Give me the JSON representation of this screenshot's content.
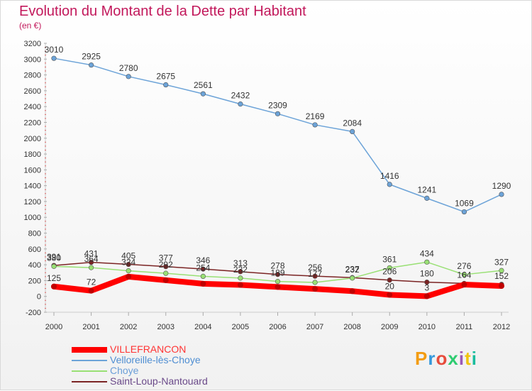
{
  "title": "Evolution du Montant de la Dette par Habitant",
  "subtitle": "(en €)",
  "brand": "Proxiti",
  "chart_data": {
    "type": "line",
    "title": "Evolution du Montant de la Dette par Habitant",
    "subtitle": "(en €)",
    "x": [
      "2000",
      "2001",
      "2002",
      "2003",
      "2004",
      "2005",
      "2006",
      "2007",
      "2008",
      "2009",
      "2010",
      "2011",
      "2012"
    ],
    "ylim": [
      -200,
      3200
    ],
    "yticks": [
      -200,
      0,
      200,
      400,
      600,
      800,
      1000,
      1200,
      1400,
      1600,
      1800,
      2000,
      2200,
      2400,
      2600,
      2800,
      3000,
      3200
    ],
    "grid": false,
    "legend_position": "bottom-left",
    "series": [
      {
        "name": "VILLEFRANCON",
        "color": "#ff0000",
        "values": [
          125,
          72,
          250,
          205,
          160,
          145,
          120,
          95,
          67,
          20,
          3,
          150,
          132
        ],
        "labels": [
          "125",
          "72",
          "",
          "",
          "",
          "",
          "",
          "",
          "",
          "20",
          "3",
          "",
          ""
        ]
      },
      {
        "name": "Velloreille-lès-Choye",
        "color": "#6ca3d8",
        "values": [
          3010,
          2925,
          2780,
          2675,
          2561,
          2432,
          2309,
          2169,
          2084,
          1416,
          1241,
          1069,
          1290
        ],
        "labels": [
          "3010",
          "2925",
          "2780",
          "2675",
          "2561",
          "2432",
          "2309",
          "2169",
          "2084",
          "1416",
          "1241",
          "1069",
          "1290"
        ]
      },
      {
        "name": "Choye",
        "color": "#99e074",
        "values": [
          380,
          364,
          324,
          292,
          254,
          232,
          189,
          177,
          232,
          361,
          434,
          276,
          327
        ],
        "labels": [
          "380",
          "364",
          "324",
          "292",
          "254",
          "232",
          "189",
          "177",
          "232",
          "361",
          "434",
          "276",
          "327"
        ]
      },
      {
        "name": "Saint-Loup-Nantouard",
        "color": "#7b2424",
        "values": [
          391,
          431,
          405,
          377,
          346,
          313,
          278,
          256,
          237,
          206,
          180,
          164,
          152
        ],
        "labels": [
          "391",
          "431",
          "405",
          "377",
          "346",
          "313",
          "278",
          "256",
          "237",
          "206",
          "180",
          "164",
          "152"
        ]
      }
    ]
  }
}
